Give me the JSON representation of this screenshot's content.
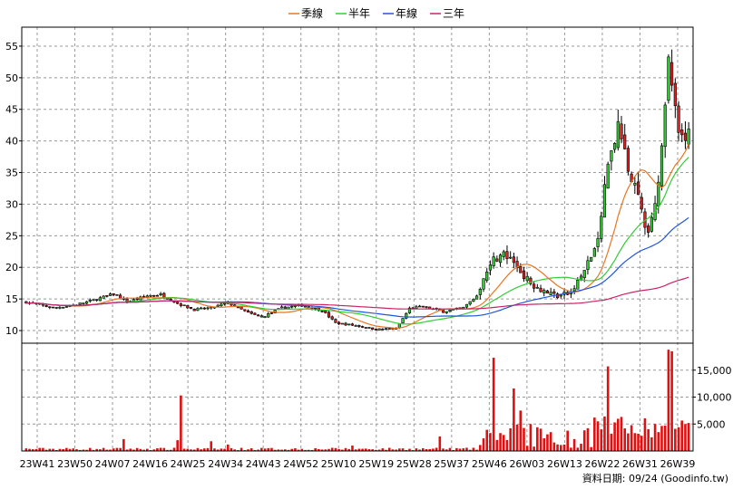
{
  "chart_data": {
    "type": "candlestick",
    "legend": {
      "placement": "top-center",
      "entries": [
        {
          "label": "季線",
          "color": "#e87722"
        },
        {
          "label": "半年",
          "color": "#33cc33"
        },
        {
          "label": "年線",
          "color": "#2255dd"
        },
        {
          "label": "三年",
          "color": "#cc2266"
        }
      ]
    },
    "price_axis": {
      "ylim": [
        8,
        58
      ],
      "ticks": [
        "10",
        "15",
        "20",
        "25",
        "30",
        "35",
        "40",
        "45",
        "50",
        "55"
      ],
      "side": "left"
    },
    "volume_axis": {
      "ylim": [
        0,
        20000
      ],
      "ticks": [
        "5,000",
        "10,000",
        "15,000"
      ],
      "side": "right"
    },
    "x_ticks": [
      "23W41",
      "23W50",
      "24W07",
      "24W16",
      "24W25",
      "24W34",
      "24W43",
      "24W52",
      "25W10",
      "25W19",
      "25W28",
      "25W37",
      "25W46",
      "26W03",
      "26W13",
      "26W22",
      "26W31",
      "26W39"
    ],
    "grid": true,
    "up_color": "#33cc33",
    "down_color": "#dd2222",
    "credit": "資料日期: 09/24 (Goodinfo.tw)"
  }
}
